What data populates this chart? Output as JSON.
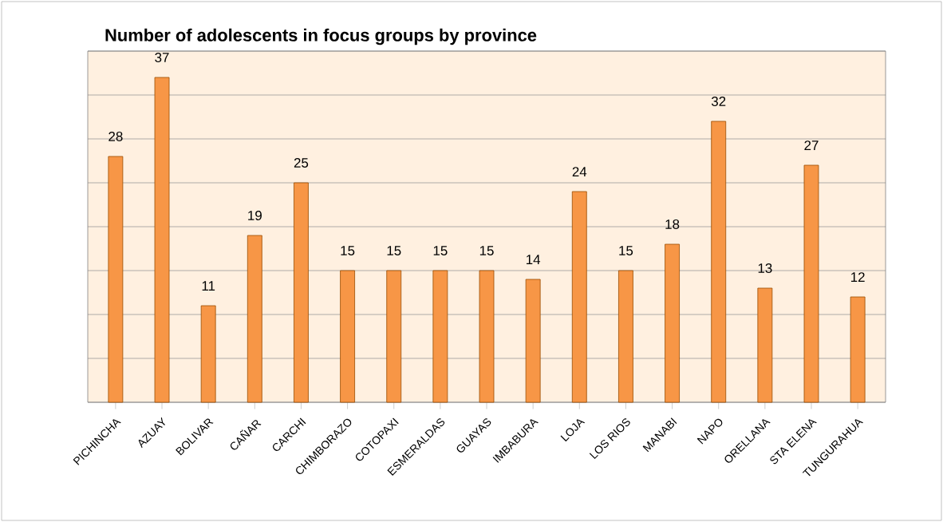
{
  "chart_data": {
    "type": "bar",
    "title": "Number of adolescents in focus groups by province",
    "categories": [
      "PICHINCHA",
      "AZUAY",
      "BOLIVAR",
      "CAÑAR",
      "CARCHI",
      "CHIMBORAZO",
      "COTOPAXI",
      "ESMERALDAS",
      "GUAYAS",
      "IMBABURA",
      "LOJA",
      "LOS RIOS",
      "MANABI",
      "NAPO",
      "ORELLANA",
      "STA ELENA",
      "TUNGURAHUA"
    ],
    "values": [
      28,
      37,
      11,
      19,
      25,
      15,
      15,
      15,
      15,
      14,
      24,
      15,
      18,
      32,
      13,
      27,
      12
    ],
    "color": "#f79646",
    "data_labels": true,
    "grid": "y",
    "tick_labels": "x",
    "ylim": [
      0,
      40
    ],
    "yticks": [
      {
        "value": 0,
        "label": null
      },
      {
        "value": 5,
        "label": null
      },
      {
        "value": 10,
        "label": null
      },
      {
        "value": 15,
        "label": null
      },
      {
        "value": 20,
        "label": null
      },
      {
        "value": 25,
        "label": null
      },
      {
        "value": 30,
        "label": null
      },
      {
        "value": 35,
        "label": null
      },
      {
        "value": 40,
        "label": null
      }
    ]
  }
}
